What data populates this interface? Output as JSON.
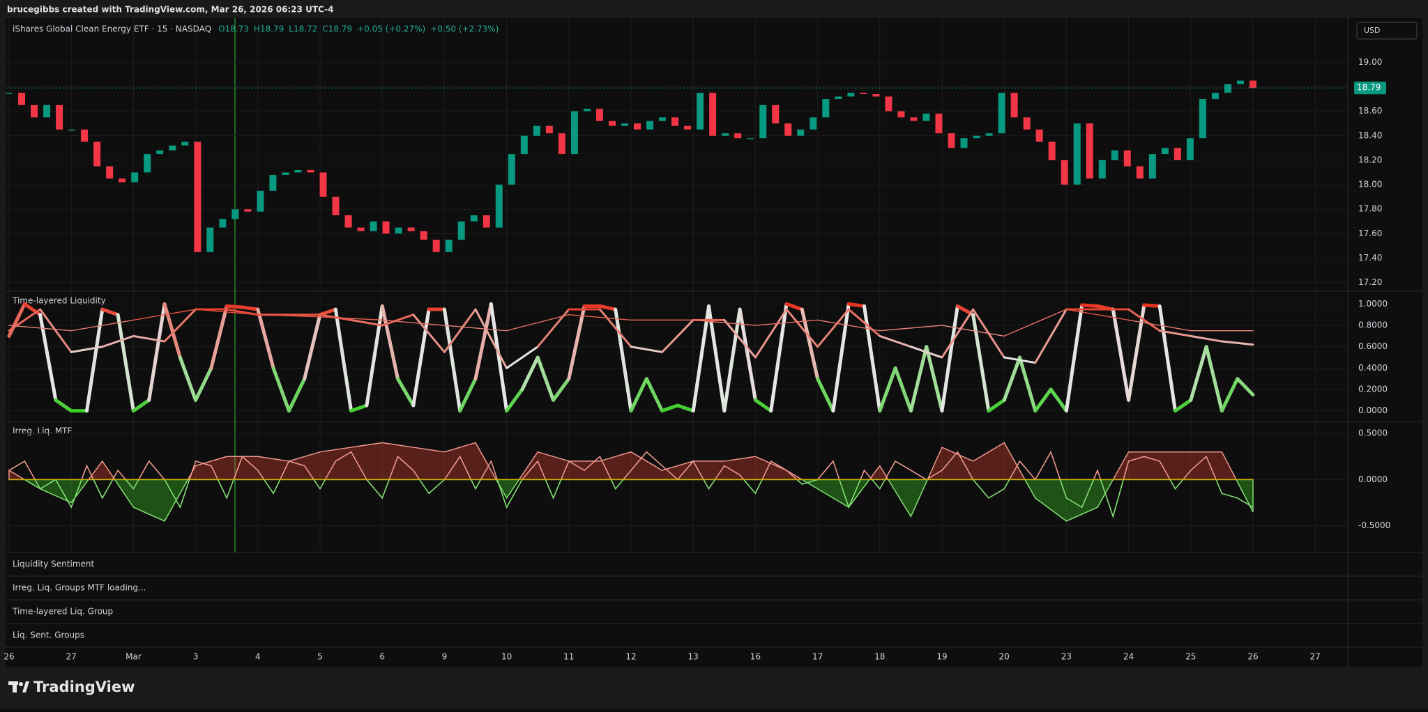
{
  "header": {
    "byline": "brucegibbs created with TradingView.com, Mar 26, 2026 06:23 UTC-4",
    "currency": "USD",
    "ohlc": [
      "O18.73",
      "H18.79",
      "L18.72",
      "C18.79",
      "+0.05 (+0.27%)",
      "+0.50 (+2.73%)"
    ]
  },
  "chart_data": [
    {
      "type": "candlestick",
      "title": "iShares Global Clean Energy ETF · 15 · NASDAQ",
      "up_color": "#089981",
      "down_color": "#f23645",
      "last_price": 18.79,
      "last_price_color": "#089981",
      "values": [
        18.75,
        18.65,
        18.55,
        18.65,
        18.45,
        18.45,
        18.35,
        18.15,
        18.05,
        18.02,
        18.1,
        18.25,
        18.28,
        18.32,
        18.35,
        17.45,
        17.65,
        17.72,
        17.8,
        17.78,
        17.95,
        18.08,
        18.1,
        18.12,
        18.1,
        17.9,
        17.75,
        17.65,
        17.62,
        17.7,
        17.6,
        17.65,
        17.62,
        17.55,
        17.45,
        17.55,
        17.7,
        17.75,
        17.65,
        18.0,
        18.25,
        18.4,
        18.48,
        18.42,
        18.25,
        18.6,
        18.62,
        18.52,
        18.48,
        18.5,
        18.45,
        18.52,
        18.55,
        18.48,
        18.45,
        18.75,
        18.4,
        18.42,
        18.38,
        18.38,
        18.65,
        18.5,
        18.4,
        18.45,
        18.55,
        18.7,
        18.72,
        18.75,
        18.74,
        18.72,
        18.6,
        18.55,
        18.52,
        18.58,
        18.42,
        18.3,
        18.38,
        18.4,
        18.42,
        18.75,
        18.55,
        18.45,
        18.35,
        18.2,
        18.0,
        18.5,
        18.05,
        18.2,
        18.28,
        18.15,
        18.05,
        18.25,
        18.3,
        18.2,
        18.38,
        18.7,
        18.75,
        18.82,
        18.85,
        18.79
      ],
      "ylim": [
        17.13,
        19.36
      ],
      "yticks": [
        {
          "value": 17.2,
          "label": "17.20"
        },
        {
          "value": 17.4,
          "label": "17.40"
        },
        {
          "value": 17.6,
          "label": "17.60"
        },
        {
          "value": 17.8,
          "label": "17.80"
        },
        {
          "value": 18.0,
          "label": "18.00"
        },
        {
          "value": 18.2,
          "label": "18.20"
        },
        {
          "value": 18.4,
          "label": "18.40"
        },
        {
          "value": 18.6,
          "label": "18.60"
        },
        {
          "value": 18.8,
          "label": "18.80"
        },
        {
          "value": 19.0,
          "label": "19.00"
        }
      ],
      "grid": true
    },
    {
      "type": "line",
      "title": "Time-layered Liquidity",
      "color_scale": [
        "#3ccf28",
        "#e6e6e6",
        "#e8301c"
      ],
      "series": [
        {
          "values": [
            0.7,
            1.0,
            0.9,
            0.1,
            0.0,
            0.0,
            0.95,
            0.9,
            0.0,
            0.1,
            1.0,
            0.5,
            0.1,
            0.4,
            0.98,
            0.97,
            0.95,
            0.4,
            0.0,
            0.3,
            0.9,
            0.95,
            0.0,
            0.05,
            0.98,
            0.3,
            0.05,
            0.95,
            0.95,
            0.0,
            0.3,
            1.0,
            0.0,
            0.2,
            0.5,
            0.1,
            0.3,
            0.98,
            0.98,
            0.95,
            0.0,
            0.3,
            0.0,
            0.05,
            0.0,
            0.98,
            0.0,
            0.95,
            0.1,
            0.0,
            1.0,
            0.95,
            0.3,
            0.0,
            1.0,
            0.98,
            0.0,
            0.4,
            0.0,
            0.6,
            0.0,
            0.98,
            0.9,
            0.0,
            0.1,
            0.5,
            0.0,
            0.2,
            0.0,
            0.99,
            0.98,
            0.95,
            0.1,
            0.99,
            0.98,
            0.0,
            0.1,
            0.6,
            0.0,
            0.3,
            0.15
          ]
        },
        {
          "values": [
            0.75,
            0.95,
            0.55,
            0.6,
            0.7,
            0.65,
            0.95,
            0.95,
            0.9,
            0.9,
            0.9,
            0.85,
            0.8,
            0.9,
            0.55,
            0.95,
            0.4,
            0.6,
            0.95,
            0.95,
            0.6,
            0.55,
            0.85,
            0.85,
            0.5,
            0.95,
            0.6,
            0.95,
            0.7,
            0.6,
            0.5,
            0.95,
            0.5,
            0.45,
            0.95,
            0.95,
            0.95,
            0.75,
            0.7,
            0.65,
            0.62
          ]
        },
        {
          "values": [
            0.8,
            0.75,
            0.85,
            0.95,
            0.9,
            0.88,
            0.85,
            0.8,
            0.75,
            0.9,
            0.85,
            0.85,
            0.8,
            0.85,
            0.75,
            0.8,
            0.7,
            0.95,
            0.85,
            0.75,
            0.75
          ]
        }
      ],
      "ylim": [
        -0.1,
        1.12
      ],
      "yticks": [
        {
          "value": 0,
          "label": "0.0000"
        },
        {
          "value": 0.2,
          "label": "0.2000"
        },
        {
          "value": 0.4,
          "label": "0.4000"
        },
        {
          "value": 0.6,
          "label": "0.6000"
        },
        {
          "value": 0.8,
          "label": "0.8000"
        },
        {
          "value": 1.0,
          "label": "1.0000"
        }
      ],
      "grid": true
    },
    {
      "type": "area",
      "title": "Irreg. Liq. MTF",
      "positive_color": "#e0432f",
      "negative_color": "#3fcf27",
      "zero_line_color": "#c9b600",
      "series": [
        {
          "values": [
            0.1,
            -0.1,
            -0.25,
            0.2,
            -0.3,
            -0.45,
            0.15,
            0.25,
            0.25,
            0.2,
            0.3,
            0.35,
            0.4,
            0.35,
            0.3,
            0.4,
            -0.2,
            0.3,
            0.2,
            0.2,
            0.3,
            0.1,
            0.2,
            0.2,
            0.25,
            0.1,
            -0.1,
            -0.3,
            0.15,
            -0.4,
            0.35,
            0.2,
            0.4,
            -0.2,
            -0.45,
            -0.3,
            0.3,
            0.3,
            0.3,
            0.3,
            -0.35
          ]
        },
        {
          "values": [
            0.1,
            0.2,
            -0.1,
            0.0,
            -0.3,
            0.15,
            -0.2,
            0.1,
            -0.1,
            0.2,
            0.0,
            -0.3,
            0.2,
            0.15,
            -0.2,
            0.25,
            0.1,
            -0.15,
            0.2,
            0.15,
            -0.1,
            0.2,
            0.3,
            0.0,
            -0.2,
            0.25,
            0.1,
            -0.15,
            0.0,
            0.25,
            -0.1,
            0.2,
            -0.3,
            0.0,
            0.2,
            -0.2,
            0.2,
            0.1,
            0.25,
            -0.1,
            0.1,
            0.3,
            0.15,
            0.0,
            0.2,
            -0.1,
            0.15,
            0.05,
            -0.15,
            0.2,
            0.1,
            -0.05,
            0.0,
            0.2,
            -0.3,
            0.1,
            -0.1,
            0.2,
            0.1,
            0.0,
            0.1,
            0.3,
            0.0,
            -0.2,
            -0.1,
            0.2,
            0.0,
            0.3,
            -0.2,
            -0.3,
            0.1,
            -0.4,
            0.2,
            0.25,
            0.2,
            -0.1,
            0.1,
            0.25,
            -0.15,
            -0.2,
            -0.3
          ]
        }
      ],
      "ylim": [
        -0.79,
        0.63
      ],
      "yticks": [
        {
          "value": -0.5,
          "label": "-0.5000"
        },
        {
          "value": 0,
          "label": "0.0000"
        },
        {
          "value": 0.5,
          "label": "0.5000"
        }
      ],
      "grid": true
    }
  ],
  "collapsed_panes": [
    "Liquidity Sentiment",
    "Irreg. Liq. Groups MTF loading...",
    "Time-layered Liq. Group",
    "Liq. Sent. Groups"
  ],
  "x_axis": {
    "categories": [
      "26",
      "27",
      "Mar",
      "3",
      "4",
      "5",
      "6",
      "9",
      "10",
      "11",
      "12",
      "13",
      "16",
      "17",
      "18",
      "19",
      "20",
      "23",
      "24",
      "25",
      "26",
      "27"
    ]
  },
  "footer": {
    "brand": "TradingView"
  }
}
